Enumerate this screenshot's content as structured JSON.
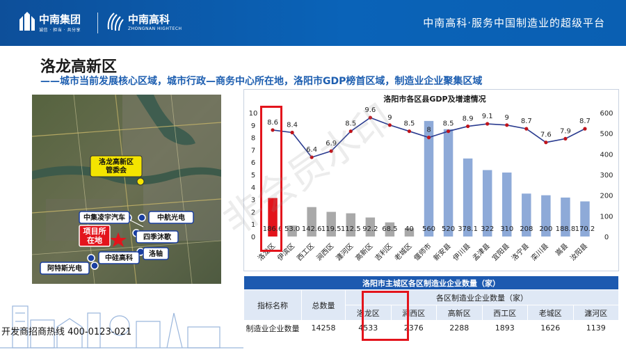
{
  "header": {
    "brand1_name": "中南集团",
    "brand1_sub": "诚信 · 担当 · 共分享",
    "brand2_name": "中南高科",
    "brand2_sub": "ZHONGNAN HIGHTECH",
    "slogan": "中南高科·服务中国制造业的超级平台"
  },
  "page": {
    "title": "洛龙高新区",
    "subtitle": "——城市当前发展核心区域，城市行政—商务中心所在地，洛阳市GDP榜首区域，制造业企业聚集区域"
  },
  "map": {
    "labels": [
      {
        "id": "committee",
        "text": "洛龙高新区管委会"
      },
      {
        "id": "lingyu",
        "text": "中集凌宇汽车"
      },
      {
        "id": "zhonghang",
        "text": "中航光电"
      },
      {
        "id": "project",
        "text": "项目所在地"
      },
      {
        "id": "siji",
        "text": "四季沐歌"
      },
      {
        "id": "luozhou",
        "text": "洛轴"
      },
      {
        "id": "guigao",
        "text": "中硅高科"
      },
      {
        "id": "ates",
        "text": "阿特斯光电"
      }
    ]
  },
  "chart_data": {
    "type": "bar",
    "title": "洛阳市各区县GDP及增速情况",
    "categories": [
      "洛龙区",
      "伊滨区",
      "西工区",
      "涧西区",
      "瀍河区",
      "高新区",
      "吉利区",
      "老城区",
      "偃师市",
      "新安县",
      "伊川县",
      "孟津县",
      "宜阳县",
      "洛宁县",
      "栾川县",
      "嵩县",
      "汝阳县"
    ],
    "series": [
      {
        "values": [
          186.6,
          53.0,
          142.6,
          119.5,
          112.5,
          92.2,
          68.5,
          40,
          560,
          520,
          378.1,
          322,
          310,
          208,
          200,
          188.8,
          170.2
        ],
        "axis": "right",
        "type": "bar"
      },
      {
        "values": [
          8.6,
          8.4,
          6.4,
          6.9,
          8.5,
          9.6,
          9,
          8.5,
          8,
          8.5,
          8.9,
          9.1,
          9,
          8.7,
          7.6,
          7.9,
          8.7
        ],
        "axis": "left",
        "type": "line"
      }
    ],
    "bar_labels": [
      "186.6",
      "53.0",
      "142.6",
      "119.5",
      "112.5",
      "92.2",
      "68.5",
      "40",
      "560",
      "520",
      "378.1",
      "322",
      "310",
      "208",
      "200",
      "188.8",
      "170.2"
    ],
    "line_labels": [
      "8.6",
      "8.4",
      "6.4",
      "6.9",
      "8.5",
      "9.6",
      "9",
      "8.5",
      "8",
      "8.5",
      "8.9",
      "9.1",
      "9",
      "8.7",
      "7.6",
      "7.9",
      "8.7"
    ],
    "left_ylim": [
      0,
      10
    ],
    "left_ticks": [
      "0",
      "1",
      "2",
      "3",
      "4",
      "5",
      "6",
      "7",
      "8",
      "9",
      "10"
    ],
    "right_ylim": [
      0,
      600
    ],
    "right_ticks": [
      "0",
      "100",
      "200",
      "300",
      "400",
      "500",
      "600"
    ],
    "colors": {
      "red_bar": "#e3141c",
      "grey_bar": "#a9a9a9",
      "blue_bar": "#8eaad8",
      "line": "#2a3b8f",
      "marker": "#c0141b"
    },
    "highlight_index": 0,
    "grey_indices": [
      1,
      2,
      3,
      4,
      5,
      6,
      7
    ]
  },
  "table": {
    "title": "洛阳市主城区各区制造业企业数量（家）",
    "col_name": "指标名称",
    "col_total": "总数量",
    "group_header": "各区制造业企业数量（家）",
    "districts": [
      "洛龙区",
      "涧西区",
      "高新区",
      "西工区",
      "老城区",
      "瀍河区"
    ],
    "row_label": "制造业企业数量",
    "total": "14258",
    "values": [
      "4533",
      "2376",
      "2288",
      "1893",
      "1626",
      "1139"
    ]
  },
  "watermark": "非会员水印",
  "footer": {
    "hotline": "开发商招商热线 400-0123-021"
  }
}
